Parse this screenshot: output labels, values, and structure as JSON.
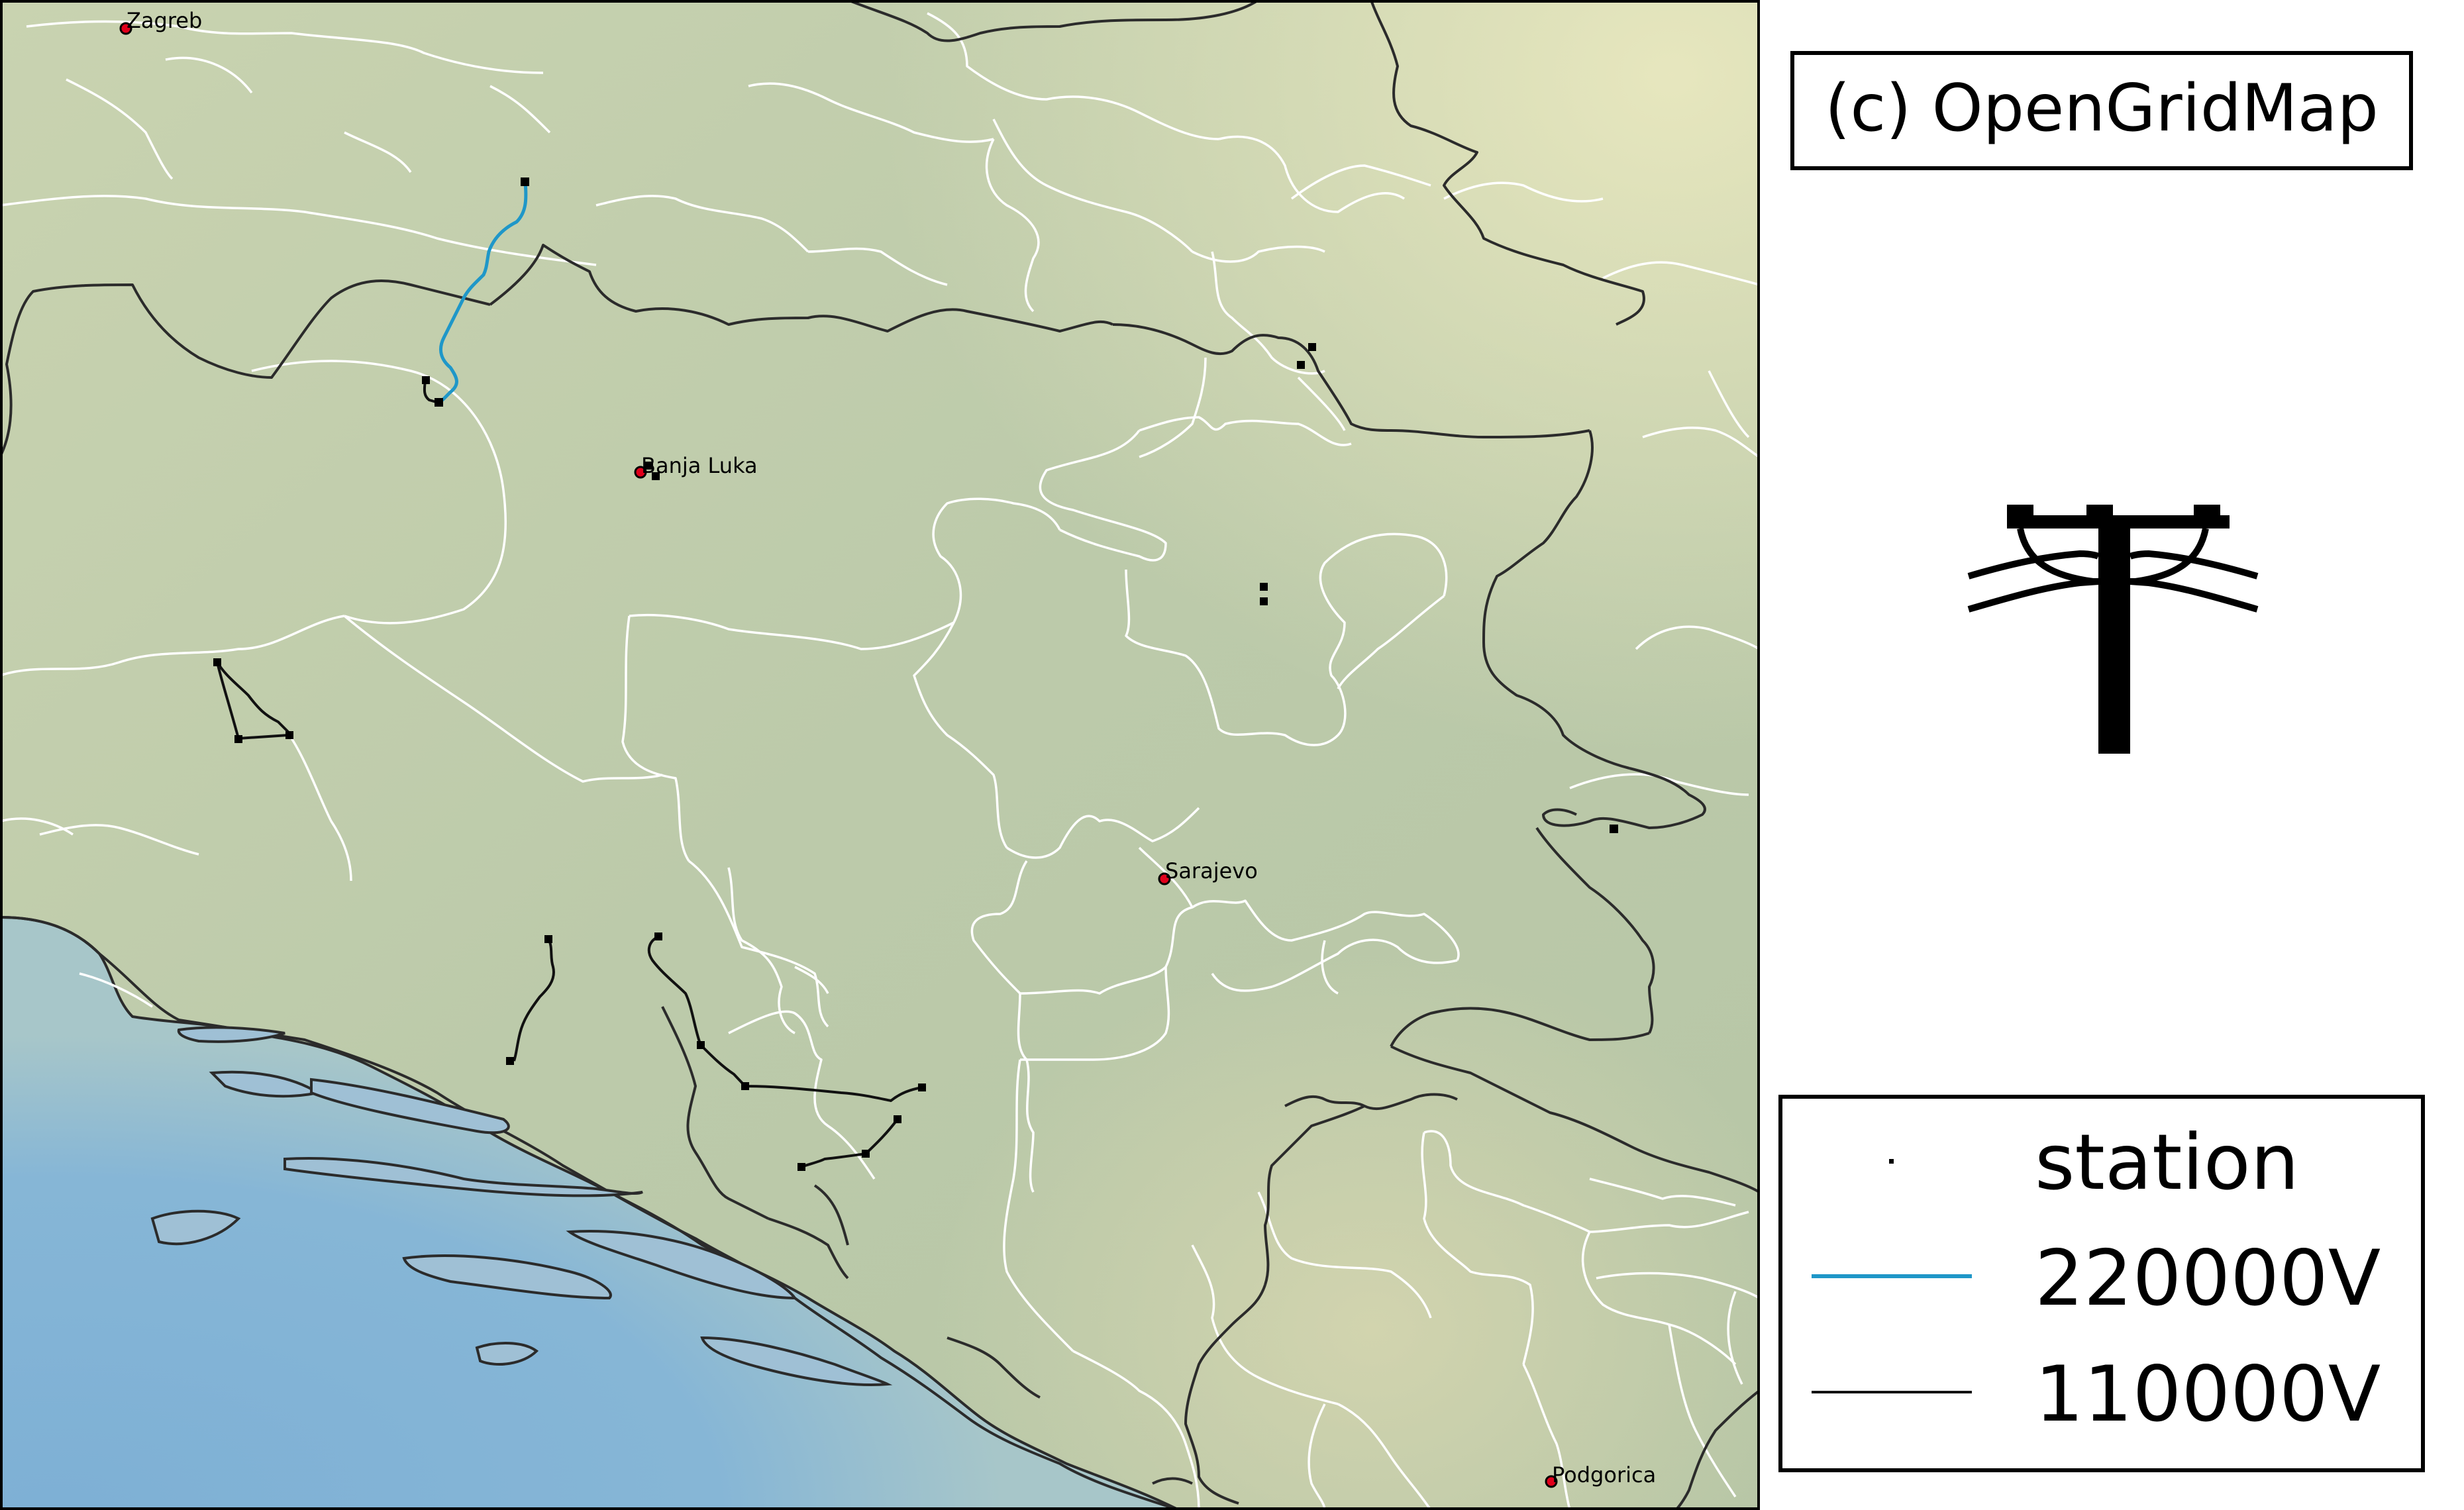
{
  "credit": "(c) OpenGridMap",
  "cities": [
    {
      "name": "Zagreb"
    },
    {
      "name": "Banja Luka"
    },
    {
      "name": "Sarajevo"
    },
    {
      "name": "Podgorica"
    }
  ],
  "legend": {
    "station": "station",
    "line_220": "220000V",
    "line_110": "110000V"
  },
  "colors": {
    "line_220": "#1f97c8",
    "line_110": "#111111",
    "city_marker": "#e0001b",
    "sea": "#7fb2d6",
    "land": "#c4cfae",
    "borders": "#ffffff",
    "coast": "#2b2b2b"
  },
  "icon": "power-pylon-icon"
}
